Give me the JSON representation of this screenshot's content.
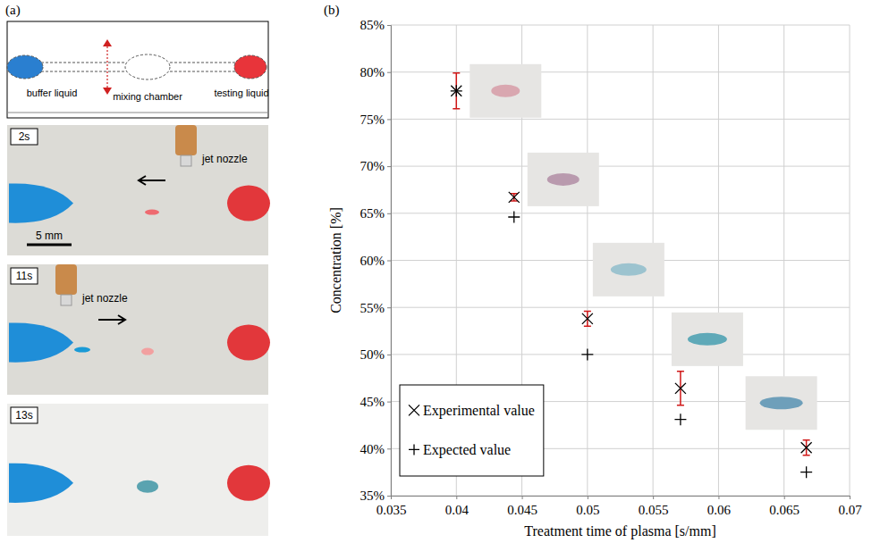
{
  "panel_a": {
    "panel_label": "(a)",
    "schematic_labels": [
      "buffer liquid",
      "mixing chamber",
      "testing liquid"
    ],
    "photos": [
      {
        "time": "2s",
        "nozzle_label": "jet nozzle",
        "scale_bar": "5 mm"
      },
      {
        "time": "11s",
        "nozzle_label": "jet nozzle"
      },
      {
        "time": "13s"
      }
    ]
  },
  "chart_data": {
    "type": "scatter",
    "panel_label": "(b)",
    "x_label": "Treatment time of plasma [s/mm]",
    "y_label": "Concentration [%]",
    "x": [
      0.04,
      0.0444,
      0.05,
      0.0571,
      0.0667
    ],
    "series": [
      {
        "name": "Experimental value",
        "marker": "x",
        "color": "#000000",
        "values": [
          78.0,
          66.7,
          53.8,
          46.4,
          40.1
        ],
        "errors": [
          1.9,
          0.4,
          0.8,
          1.8,
          0.8
        ]
      },
      {
        "name": "Expected value",
        "marker": "+",
        "color": "#000000",
        "values": [
          78.0,
          64.6,
          50.0,
          43.1,
          37.5
        ]
      }
    ],
    "xlim": [
      0.035,
      0.07
    ],
    "xticks": [
      0.035,
      0.04,
      0.045,
      0.05,
      0.055,
      0.06,
      0.065,
      0.07
    ],
    "ylim": [
      35,
      85
    ],
    "yticks": [
      {
        "value": 35,
        "label": "35%"
      },
      {
        "value": 40,
        "label": "40%"
      },
      {
        "value": 45,
        "label": "45%"
      },
      {
        "value": 50,
        "label": "50%"
      },
      {
        "value": 55,
        "label": "55%"
      },
      {
        "value": 60,
        "label": "60%"
      },
      {
        "value": 65,
        "label": "65%"
      },
      {
        "value": 70,
        "label": "70%"
      },
      {
        "value": 75,
        "label": "75%"
      },
      {
        "value": 80,
        "label": "80%"
      },
      {
        "value": 85,
        "label": "85%"
      }
    ],
    "grid": true,
    "legend": "bottom-left"
  }
}
